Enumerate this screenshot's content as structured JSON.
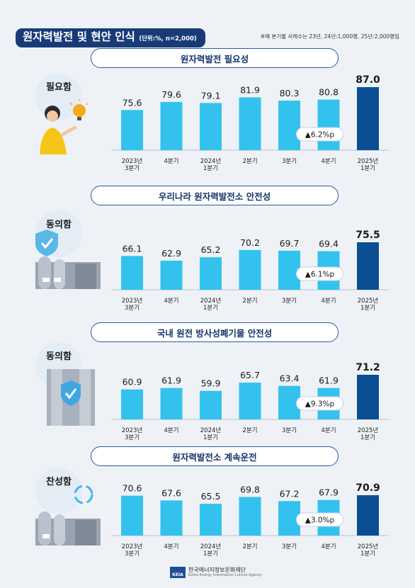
{
  "header": {
    "title": "원자력발전 및 현안 인식",
    "unit": "(단위:%, n=2,000)",
    "note": "※매 분기별 사례수는 23년, 24년:1,000명, 25년:2,000명임"
  },
  "colors": {
    "bar": "#33c2ee",
    "highlight": "#0a4f92",
    "accent": "#183b78"
  },
  "chart_data": [
    {
      "type": "bar",
      "title": "원자력발전 필요성",
      "badge": "필요함",
      "categories": [
        [
          "2023년",
          "3분기"
        ],
        [
          "4분기"
        ],
        [
          "2024년",
          "1분기"
        ],
        [
          "2분기"
        ],
        [
          "3분기"
        ],
        [
          "4분기"
        ],
        [
          "2025년",
          "1분기"
        ]
      ],
      "values": [
        75.6,
        79.6,
        79.1,
        81.9,
        80.3,
        80.8,
        87.0
      ],
      "value_labels": [
        "75.6",
        "79.6",
        "79.1",
        "81.9",
        "80.3",
        "80.8",
        "87.0"
      ],
      "change": "▲6.2%p"
    },
    {
      "type": "bar",
      "title": "우리나라 원자력발전소 안전성",
      "badge": "동의함",
      "categories": [
        [
          "2023년",
          "3분기"
        ],
        [
          "4분기"
        ],
        [
          "2024년",
          "1분기"
        ],
        [
          "2분기"
        ],
        [
          "3분기"
        ],
        [
          "4분기"
        ],
        [
          "2025년",
          "1분기"
        ]
      ],
      "values": [
        66.1,
        62.9,
        65.2,
        70.2,
        69.7,
        69.4,
        75.5
      ],
      "value_labels": [
        "66.1",
        "62.9",
        "65.2",
        "70.2",
        "69.7",
        "69.4",
        "75.5"
      ],
      "change": "▲6.1%p"
    },
    {
      "type": "bar",
      "title": "국내 원전 방사성폐기물 안전성",
      "badge": "동의함",
      "categories": [
        [
          "2023년",
          "3분기"
        ],
        [
          "4분기"
        ],
        [
          "2024년",
          "1분기"
        ],
        [
          "2분기"
        ],
        [
          "3분기"
        ],
        [
          "4분기"
        ],
        [
          "2025년",
          "1분기"
        ]
      ],
      "values": [
        60.9,
        61.9,
        59.9,
        65.7,
        63.4,
        61.9,
        71.2
      ],
      "value_labels": [
        "60.9",
        "61.9",
        "59.9",
        "65.7",
        "63.4",
        "61.9",
        "71.2"
      ],
      "change": "▲9.3%p"
    },
    {
      "type": "bar",
      "title": "원자력발전소 계속운전",
      "badge": "찬성함",
      "categories": [
        [
          "2023년",
          "3분기"
        ],
        [
          "4분기"
        ],
        [
          "2024년",
          "1분기"
        ],
        [
          "2분기"
        ],
        [
          "3분기"
        ],
        [
          "4분기"
        ],
        [
          "2025년",
          "1분기"
        ]
      ],
      "values": [
        70.6,
        67.6,
        65.5,
        69.8,
        67.2,
        67.9,
        70.9
      ],
      "value_labels": [
        "70.6",
        "67.6",
        "65.5",
        "69.8",
        "67.2",
        "67.9",
        "70.9"
      ],
      "change": "▲3.0%p"
    }
  ],
  "footer": {
    "logo_mark": "KEIA",
    "org_name": "한국에너지정보문화재단",
    "org_name_en": "Korea Energy Information Culture Agency"
  }
}
